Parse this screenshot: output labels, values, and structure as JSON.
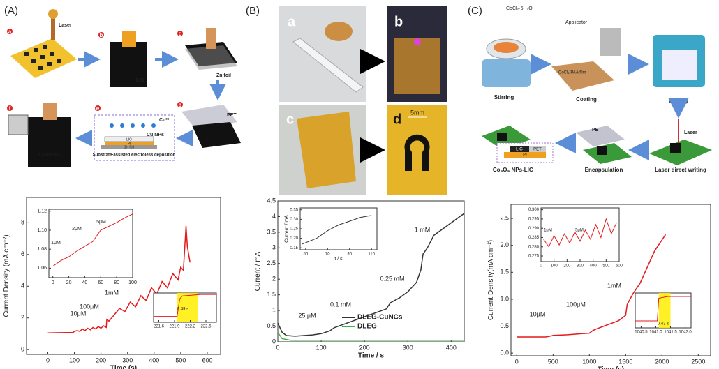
{
  "panels": [
    {
      "label": "(A)",
      "steps": [
        "a",
        "b",
        "c",
        "d",
        "e",
        "f"
      ],
      "texts": [
        "Laser",
        "LIG",
        "Zn foil",
        "PET",
        "Cu²⁺",
        "Cu NPs",
        "LIG",
        "PI",
        "Zn foil",
        "Substrate-assisted electroless deposition",
        "Cu NPs/LIG"
      ]
    },
    {
      "label": "(B)",
      "photos": [
        "a",
        "b",
        "c",
        "d"
      ],
      "texts": [
        "5mm"
      ]
    },
    {
      "label": "(C)",
      "texts": [
        "CoCl₂·6H₂O",
        "Applicator",
        "CoCl₂/PAA film",
        "Stirring",
        "Coating",
        "Baking",
        "Laser",
        "PET",
        "Laser direct writing",
        "Encapsulation",
        "Co₃O₄ NPs-LIG",
        "LIG",
        "PET",
        "PI"
      ]
    }
  ],
  "chart_data": [
    {
      "type": "line",
      "xlabel": "Time (s)",
      "ylabel": "Current Density (mA cm⁻²)",
      "xlim": [
        -80,
        650
      ],
      "ylim": [
        -0.3,
        9.6
      ],
      "xticks": [
        0,
        100,
        200,
        300,
        400,
        500,
        600
      ],
      "yticks": [
        0,
        2,
        4,
        6,
        8
      ],
      "annotations": [
        "10μM",
        "100μM",
        "1mM"
      ],
      "series": [
        {
          "color": "#e41a1c",
          "x": [
            0,
            50,
            95,
            100,
            110,
            120,
            130,
            140,
            150,
            160,
            170,
            180,
            190,
            200,
            210,
            220,
            222,
            230,
            250,
            270,
            290,
            310,
            330,
            350,
            370,
            390,
            410,
            430,
            450,
            470,
            490,
            500,
            510,
            520,
            525,
            535
          ],
          "values": [
            1.05,
            1.07,
            1.08,
            1.15,
            1.2,
            1.15,
            1.3,
            1.2,
            1.35,
            1.25,
            1.4,
            1.3,
            1.45,
            1.35,
            1.5,
            1.4,
            1.9,
            1.8,
            2.2,
            2.6,
            2.4,
            3.0,
            2.7,
            3.4,
            3.1,
            3.9,
            3.5,
            4.3,
            3.9,
            4.8,
            4.4,
            5.2,
            5.0,
            7.8,
            6.5,
            5.5
          ]
        }
      ]
    },
    {
      "type": "line",
      "xlim": [
        -5,
        100
      ],
      "ylim": [
        1.05,
        1.122
      ],
      "xticks": [
        0,
        20,
        40,
        60,
        80,
        100
      ],
      "yticks": [
        1.06,
        1.08,
        {
          "value": 1.1,
          "label": "1.10"
        },
        1.12
      ],
      "annotations": [
        "1μM",
        "2μM",
        "5μM"
      ],
      "series": [
        {
          "color": "#e41a1c",
          "x": [
            0,
            10,
            20,
            30,
            40,
            50,
            60,
            70,
            80,
            90,
            100
          ],
          "values": [
            1.062,
            1.068,
            1.072,
            1.078,
            1.083,
            1.088,
            1.1,
            1.104,
            1.108,
            1.113,
            1.117
          ]
        }
      ]
    },
    {
      "type": "line",
      "xlim": [
        221.5,
        222.7
      ],
      "ylim": [
        0,
        1
      ],
      "xticks": [
        221.6,
        221.9,
        222.2,
        222.5
      ],
      "yticks": [],
      "highlight": [
        221.95,
        222.35
      ],
      "annotations": [
        "0.49 s"
      ],
      "series": [
        {
          "color": "#e41a1c",
          "x": [
            221.5,
            221.95,
            222.0,
            222.05,
            222.4,
            222.7
          ],
          "values": [
            0.2,
            0.2,
            0.8,
            0.9,
            0.95,
            0.95
          ]
        }
      ]
    },
    {
      "type": "line",
      "xlabel": "Time / s",
      "ylabel": "Current / mA",
      "xlim": [
        0,
        430
      ],
      "ylim": [
        0,
        4.5
      ],
      "xticks": [
        0,
        100,
        200,
        300,
        400
      ],
      "yticks": [
        0,
        0.5,
        1,
        1.5,
        2,
        2.5,
        3,
        3.5,
        4,
        4.5
      ],
      "annotations": [
        "25 μM",
        "0.1 mM",
        "0.25 mM",
        "1 mM"
      ],
      "series": [
        {
          "name": "DLEG-CuNCs",
          "color": "#333333",
          "x": [
            0,
            10,
            20,
            40,
            60,
            80,
            100,
            120,
            130,
            150,
            170,
            190,
            210,
            230,
            250,
            260,
            280,
            300,
            320,
            330,
            335,
            345,
            360,
            380,
            400,
            420,
            430
          ],
          "values": [
            0.6,
            0.3,
            0.2,
            0.18,
            0.2,
            0.22,
            0.26,
            0.35,
            0.45,
            0.55,
            0.65,
            0.75,
            0.85,
            0.95,
            1.05,
            1.25,
            1.4,
            1.6,
            1.9,
            2.3,
            2.8,
            3.0,
            3.4,
            3.6,
            3.8,
            4.0,
            4.1
          ]
        },
        {
          "name": "DLEG",
          "color": "#3cb44b",
          "x": [
            0,
            10,
            30,
            100,
            200,
            300,
            430
          ],
          "values": [
            0.3,
            0.1,
            0.05,
            0.05,
            0.05,
            0.05,
            0.05
          ]
        }
      ]
    },
    {
      "type": "line",
      "xlabel": "t / s",
      "ylabel": "Current / mA",
      "xlim": [
        45,
        115
      ],
      "ylim": [
        0.14,
        0.36
      ],
      "xticks": [
        50,
        70,
        90,
        110
      ],
      "yticks": [
        0.15,
        {
          "value": 0.2,
          "label": "0.20"
        },
        0.25,
        {
          "value": 0.3,
          "label": "0.30"
        },
        0.35
      ],
      "series": [
        {
          "color": "#333333",
          "x": [
            47,
            60,
            70,
            80,
            90,
            100,
            110
          ],
          "values": [
            0.17,
            0.2,
            0.24,
            0.27,
            0.29,
            0.31,
            0.32
          ]
        }
      ]
    },
    {
      "type": "line",
      "xlabel": "Time (s)",
      "ylabel": "Current Density(mA cm⁻²)",
      "xlim": [
        -80,
        2670
      ],
      "ylim": [
        -0.05,
        2.76
      ],
      "xticks": [
        0,
        500,
        1000,
        1500,
        2000,
        2500
      ],
      "yticks": [
        {
          "value": 0,
          "label": "0.0"
        },
        0.5,
        {
          "value": 1,
          "label": "1.0"
        },
        1.5,
        {
          "value": 2,
          "label": "2.0"
        },
        2.5
      ],
      "annotations": [
        "10μM",
        "100μM",
        "1mM"
      ],
      "series": [
        {
          "color": "#e41a1c",
          "x": [
            0,
            200,
            400,
            480,
            500,
            700,
            900,
            1000,
            1050,
            1100,
            1200,
            1300,
            1400,
            1500,
            1520,
            1600,
            1700,
            1800,
            1900,
            2000,
            2050
          ],
          "values": [
            0.3,
            0.3,
            0.3,
            0.32,
            0.33,
            0.34,
            0.36,
            0.37,
            0.42,
            0.45,
            0.5,
            0.55,
            0.6,
            0.7,
            0.9,
            1.1,
            1.3,
            1.6,
            1.9,
            2.1,
            2.2
          ]
        }
      ]
    },
    {
      "type": "line",
      "xlim": [
        0,
        600
      ],
      "ylim": [
        0.272,
        0.301
      ],
      "xticks": [
        0,
        100,
        200,
        300,
        400,
        500,
        600
      ],
      "yticks": [
        0.275,
        {
          "value": 0.28,
          "label": "0.280"
        },
        0.285,
        {
          "value": 0.29,
          "label": "0.290"
        },
        0.295,
        {
          "value": 0.3,
          "label": "0.300"
        }
      ],
      "annotations": [
        "1μM",
        "5μM"
      ],
      "series": [
        {
          "color": "#e41a1c",
          "x": [
            20,
            60,
            100,
            140,
            180,
            220,
            260,
            300,
            340,
            380,
            420,
            460,
            500,
            540,
            580
          ],
          "values": [
            0.284,
            0.28,
            0.286,
            0.281,
            0.287,
            0.282,
            0.288,
            0.283,
            0.289,
            0.284,
            0.292,
            0.285,
            0.295,
            0.287,
            0.293
          ]
        }
      ]
    },
    {
      "type": "line",
      "xlim": [
        1040.3,
        1042.2
      ],
      "ylim": [
        0,
        1
      ],
      "xticks": [
        1040.5,
        {
          "value": 1041,
          "label": "1041.0"
        },
        1041.5,
        {
          "value": 1042,
          "label": "1042.0"
        }
      ],
      "yticks": [],
      "highlight": [
        1041.1,
        1041.5
      ],
      "annotations": [
        "0.43 s"
      ],
      "series": [
        {
          "color": "#e41a1c",
          "x": [
            1040.3,
            1041.05,
            1041.1,
            1041.4,
            1042.2
          ],
          "values": [
            0.2,
            0.2,
            0.85,
            0.9,
            0.9
          ]
        }
      ]
    }
  ]
}
